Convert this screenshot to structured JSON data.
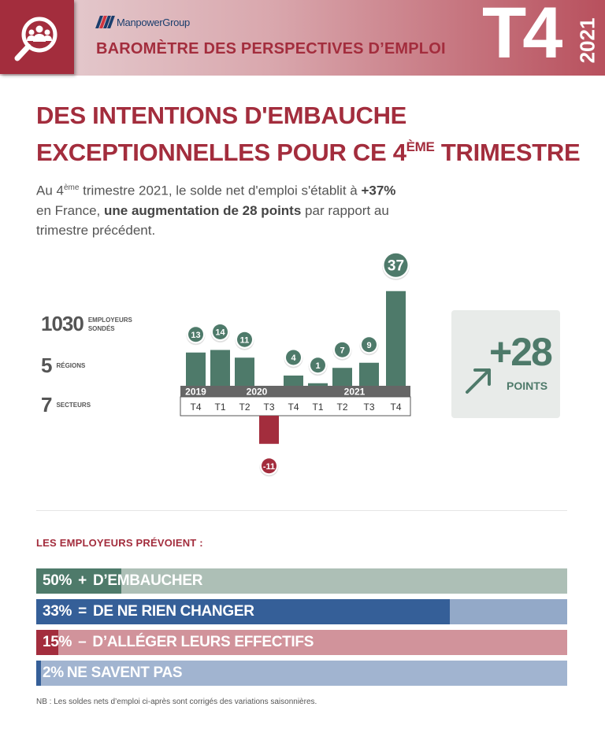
{
  "header": {
    "brand": "ManpowerGroup",
    "barometre": "BAROMÈTRE DES PERSPECTIVES D’EMPLOI",
    "quarter": "T4",
    "year": "2021",
    "icon": "people-magnifier-icon"
  },
  "title": {
    "line1": "DES INTENTIONS D'EMBAUCHE",
    "line2_pre": "EXCEPTIONNELLES POUR CE 4",
    "line2_sup": "ÈME",
    "line2_post": " TRIMESTRE"
  },
  "intro": {
    "p1": "Au 4",
    "sup": "ème",
    "p2": " trimestre 2021, le solde net d'emploi s'établit à ",
    "b1": "+37%",
    "p3": " en France, ",
    "b2": "une augmentation de 28 points",
    "p4": " par rapport au trimestre précédent."
  },
  "stats": [
    {
      "value": "1030",
      "label1": "EMPLOYEURS",
      "label2": "SONDÉS"
    },
    {
      "value": "5",
      "label1": "RÉGIONS",
      "label2": ""
    },
    {
      "value": "7",
      "label1": "SECTEURS",
      "label2": ""
    }
  ],
  "chart_data": {
    "type": "bar",
    "categories": [
      "T4",
      "T1",
      "T2",
      "T3",
      "T4",
      "T1",
      "T2",
      "T3",
      "T4"
    ],
    "years": [
      {
        "label": "2019",
        "start": 0,
        "end": 0
      },
      {
        "label": "2020",
        "start": 1,
        "end": 4
      },
      {
        "label": "2021",
        "start": 5,
        "end": 8
      }
    ],
    "values": [
      13,
      14,
      11,
      -11,
      4,
      1,
      7,
      9,
      37
    ],
    "colors": {
      "positive": "#4e7a6a",
      "negative": "#a32d3d",
      "highlight": "#4e7a6a"
    }
  },
  "change": {
    "value": "+28",
    "label": "POINTS",
    "icon": "arrow-up-right-icon"
  },
  "plans": {
    "title": "LES EMPLOYEURS PRÉVOIENT :",
    "items": [
      {
        "pct": "50%",
        "sym": "+",
        "label": "D’EMBAUCHER",
        "value": 50,
        "color": "#4e7a6a",
        "bg": "#adbfb6"
      },
      {
        "pct": "33%",
        "sym": "=",
        "label": "DE NE RIEN CHANGER",
        "value": 33,
        "color": "#355f98",
        "bg": "#93a9c8"
      },
      {
        "pct": "15%",
        "sym": "–",
        "label": "D’ALLÉGER LEURS EFFECTIFS",
        "value": 15,
        "color": "#a32d3d",
        "bg": "#d1939b"
      },
      {
        "pct": "2%",
        "sym": "",
        "label": "NE SAVENT PAS",
        "value": 2,
        "color": "#355f98",
        "bg": "#a1b4d0"
      }
    ]
  },
  "footnote": "NB : Les soldes nets d’emploi ci-après sont corrigés des variations saisonnières."
}
